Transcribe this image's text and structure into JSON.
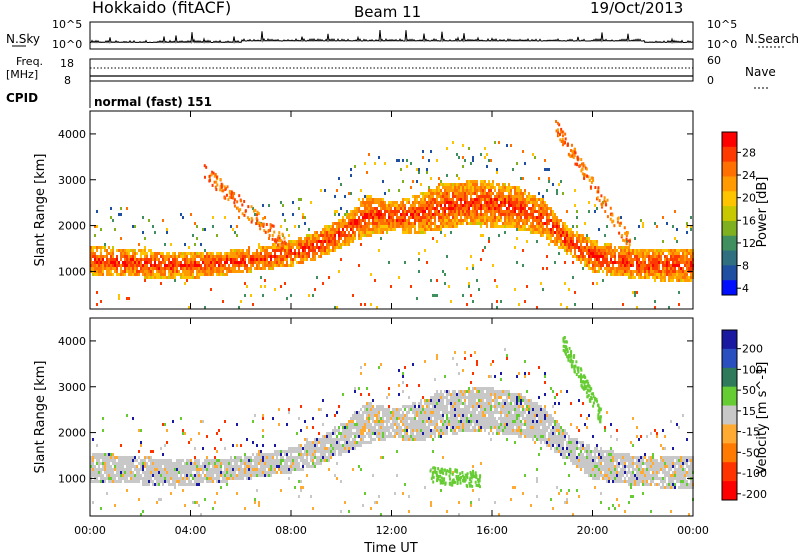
{
  "header": {
    "station": "Hokkaido (fitACF)",
    "beam": "Beam 11",
    "date": "19/Oct/2013"
  },
  "status_panels": {
    "nsky_label": "N.Sky",
    "nsearch_label": "N.Search",
    "freq_label_line1": "Freq.",
    "freq_label_line2": "[MHz]",
    "nave_label": "Nave",
    "cpid_label": "CPID",
    "cpid_value": "normal (fast) 151",
    "left_ticks_top": [
      "10^5",
      "10^0"
    ],
    "right_ticks_top": [
      "10^5",
      "10^0"
    ],
    "freq_ticks": [
      "18",
      "8"
    ],
    "nave_ticks": [
      "60",
      "0"
    ]
  },
  "chart_data": [
    {
      "type": "heatmap",
      "name": "power-panel",
      "ylabel": "Slant Range [km]",
      "ylim": [
        180,
        4500
      ],
      "yticks": [
        "1000",
        "2000",
        "3000",
        "4000"
      ],
      "xticks": [
        "00:00",
        "04:00",
        "08:00",
        "12:00",
        "16:00",
        "20:00",
        "00:00"
      ],
      "xlim_hours": [
        0,
        24
      ],
      "colorbar": {
        "label": "Power [dB]",
        "ticks": [
          "28",
          "24",
          "20",
          "16",
          "12",
          "8",
          "4"
        ],
        "colors": [
          "#ff0000",
          "#ff3a00",
          "#ff7000",
          "#ff9a00",
          "#ffc400",
          "#c8c800",
          "#7fb020",
          "#3f8f5f",
          "#2f6f7f",
          "#1f4fa0",
          "#0010ff"
        ]
      },
      "band_low_km": [
        [
          0,
          950
        ],
        [
          2,
          900
        ],
        [
          4,
          880
        ],
        [
          6,
          1000
        ],
        [
          8,
          1150
        ],
        [
          9,
          1300
        ],
        [
          10,
          1550
        ],
        [
          11,
          1800
        ],
        [
          12,
          1900
        ],
        [
          13,
          1850
        ],
        [
          14,
          1950
        ],
        [
          15,
          2050
        ],
        [
          16,
          2000
        ],
        [
          17,
          1950
        ],
        [
          18,
          1800
        ],
        [
          19,
          1400
        ],
        [
          20,
          1000
        ],
        [
          22,
          850
        ],
        [
          24,
          800
        ]
      ],
      "band_high_km": [
        [
          0,
          1600
        ],
        [
          2,
          1500
        ],
        [
          4,
          1450
        ],
        [
          6,
          1500
        ],
        [
          8,
          1700
        ],
        [
          9,
          1900
        ],
        [
          10,
          2200
        ],
        [
          11,
          2700
        ],
        [
          12,
          2550
        ],
        [
          13,
          2700
        ],
        [
          14,
          2950
        ],
        [
          15,
          3000
        ],
        [
          16,
          3000
        ],
        [
          17,
          2900
        ],
        [
          18,
          2600
        ],
        [
          19,
          2000
        ],
        [
          20,
          1700
        ],
        [
          22,
          1500
        ],
        [
          24,
          1550
        ]
      ],
      "oblique_traces": [
        {
          "from": [
            4.5,
            3200
          ],
          "to": [
            7.8,
            1600
          ]
        },
        {
          "from": [
            18.5,
            4200
          ],
          "to": [
            21.5,
            1600
          ]
        }
      ]
    },
    {
      "type": "heatmap",
      "name": "velocity-panel",
      "ylabel": "Slant Range [km]",
      "ylim": [
        180,
        4500
      ],
      "yticks": [
        "1000",
        "2000",
        "3000",
        "4000"
      ],
      "xticks": [
        "00:00",
        "04:00",
        "08:00",
        "12:00",
        "16:00",
        "20:00",
        "00:00"
      ],
      "xlabel": "Time UT",
      "colorbar": {
        "label": "Velocity [m s^-1]",
        "ticks": [
          "200",
          "100",
          "50",
          "15",
          "-15",
          "-50",
          "-100",
          "-200"
        ],
        "colors": [
          "#1a1aa0",
          "#2a4fbf",
          "#2e7a5a",
          "#66cc33",
          "#c8c8c8",
          "#ffaa33",
          "#ff7a00",
          "#ff3300",
          "#ff0000"
        ]
      },
      "ground_scatter_color": "#c8c8c8",
      "green_patches": [
        {
          "from": [
            18.8,
            4000
          ],
          "to": [
            20.3,
            2400
          ]
        },
        {
          "from": [
            13.5,
            1100
          ],
          "to": [
            15.5,
            1000
          ]
        }
      ]
    }
  ]
}
